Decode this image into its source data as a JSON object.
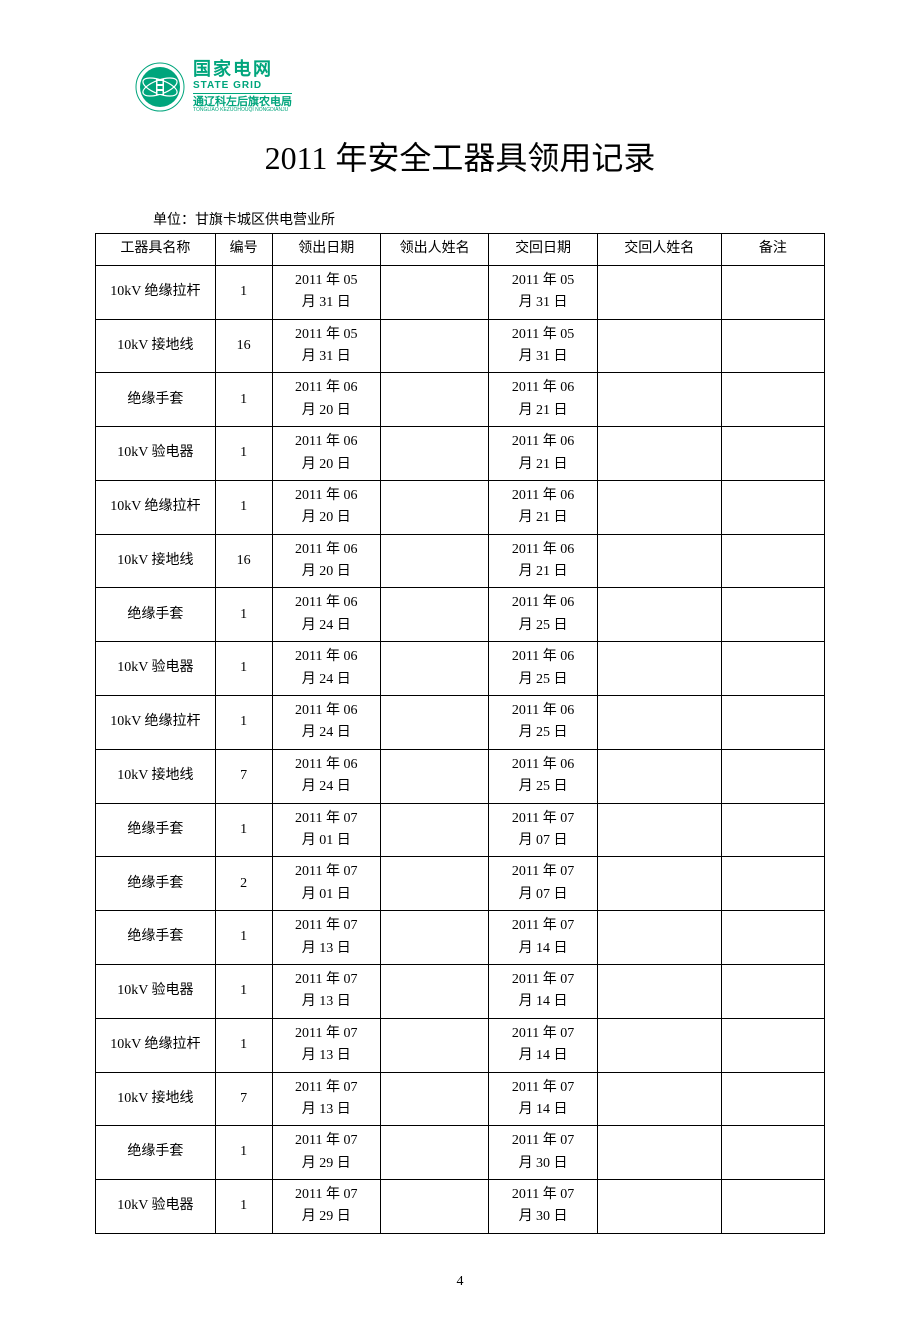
{
  "logo": {
    "name_cn": "国家电网",
    "name_en": "STATE GRID",
    "sub_cn": "通辽科左后旗农电局",
    "sub_en": "TONGLIAO KEZUOHOUQI NONGDIANJU",
    "brand_color": "#00a57c"
  },
  "title": "2011 年安全工器具领用记录",
  "unit_label": "单位：甘旗卡城区供电营业所",
  "table": {
    "headers": [
      "工器具名称",
      "编号",
      "领出日期",
      "领出人姓名",
      "交回日期",
      "交回人姓名",
      "备注"
    ],
    "rows": [
      {
        "name": "10kV 绝缘拉杆",
        "num": "1",
        "out": "2011 年 05月 31 日",
        "out_by": "",
        "ret": "2011 年 05月 31 日",
        "ret_by": "",
        "note": ""
      },
      {
        "name": "10kV 接地线",
        "num": "16",
        "out": "2011 年 05月 31 日",
        "out_by": "",
        "ret": "2011 年 05月 31 日",
        "ret_by": "",
        "note": ""
      },
      {
        "name": "绝缘手套",
        "num": "1",
        "out": "2011 年 06月 20 日",
        "out_by": "",
        "ret": "2011 年 06月 21 日",
        "ret_by": "",
        "note": ""
      },
      {
        "name": "10kV 验电器",
        "num": "1",
        "out": "2011 年 06月 20 日",
        "out_by": "",
        "ret": "2011 年 06月 21 日",
        "ret_by": "",
        "note": ""
      },
      {
        "name": "10kV 绝缘拉杆",
        "num": "1",
        "out": "2011 年 06月 20 日",
        "out_by": "",
        "ret": "2011 年 06月 21 日",
        "ret_by": "",
        "note": ""
      },
      {
        "name": "10kV 接地线",
        "num": "16",
        "out": "2011 年 06月 20 日",
        "out_by": "",
        "ret": "2011 年 06月 21 日",
        "ret_by": "",
        "note": ""
      },
      {
        "name": "绝缘手套",
        "num": "1",
        "out": "2011 年 06月 24 日",
        "out_by": "",
        "ret": "2011 年 06月 25 日",
        "ret_by": "",
        "note": ""
      },
      {
        "name": "10kV 验电器",
        "num": "1",
        "out": "2011 年 06月 24 日",
        "out_by": "",
        "ret": "2011 年 06月 25 日",
        "ret_by": "",
        "note": ""
      },
      {
        "name": "10kV 绝缘拉杆",
        "num": "1",
        "out": "2011 年 06月 24 日",
        "out_by": "",
        "ret": "2011 年 06月 25 日",
        "ret_by": "",
        "note": ""
      },
      {
        "name": "10kV 接地线",
        "num": "7",
        "out": "2011 年 06月 24 日",
        "out_by": "",
        "ret": "2011 年 06月 25 日",
        "ret_by": "",
        "note": ""
      },
      {
        "name": "绝缘手套",
        "num": "1",
        "out": "2011 年 07月 01 日",
        "out_by": "",
        "ret": "2011 年 07月 07 日",
        "ret_by": "",
        "note": ""
      },
      {
        "name": "绝缘手套",
        "num": "2",
        "out": "2011 年 07月 01 日",
        "out_by": "",
        "ret": "2011 年 07月 07 日",
        "ret_by": "",
        "note": ""
      },
      {
        "name": "绝缘手套",
        "num": "1",
        "out": "2011 年 07月 13 日",
        "out_by": "",
        "ret": "2011 年 07月 14 日",
        "ret_by": "",
        "note": ""
      },
      {
        "name": "10kV 验电器",
        "num": "1",
        "out": "2011 年 07月 13 日",
        "out_by": "",
        "ret": "2011 年 07月 14 日",
        "ret_by": "",
        "note": ""
      },
      {
        "name": "10kV 绝缘拉杆",
        "num": "1",
        "out": "2011 年 07月 13 日",
        "out_by": "",
        "ret": "2011 年 07月 14 日",
        "ret_by": "",
        "note": ""
      },
      {
        "name": "10kV 接地线",
        "num": "7",
        "out": "2011 年 07月 13 日",
        "out_by": "",
        "ret": "2011 年 07月 14 日",
        "ret_by": "",
        "note": ""
      },
      {
        "name": "绝缘手套",
        "num": "1",
        "out": "2011 年 07月 29 日",
        "out_by": "",
        "ret": "2011 年 07月 30 日",
        "ret_by": "",
        "note": ""
      },
      {
        "name": "10kV 验电器",
        "num": "1",
        "out": "2011 年 07月 29 日",
        "out_by": "",
        "ret": "2011 年 07月 30 日",
        "ret_by": "",
        "note": ""
      }
    ]
  },
  "page_number": "4"
}
